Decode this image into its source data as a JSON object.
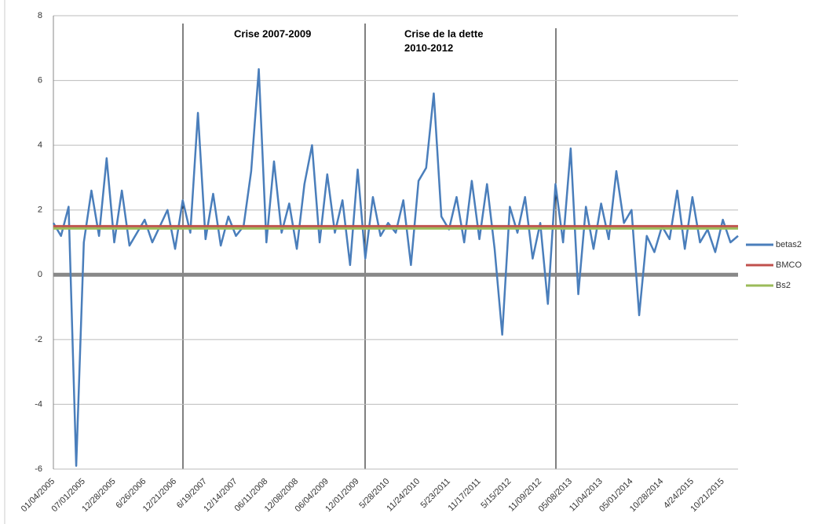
{
  "chart_data": {
    "type": "line",
    "annotations": [
      "Crise 2007-2009",
      "Crise de la dette",
      "2010-2012"
    ],
    "categories": [
      "01/04/2005",
      null,
      null,
      null,
      "07/01/2005",
      null,
      null,
      null,
      "12/28/2005",
      null,
      null,
      null,
      "6/26/2006",
      null,
      null,
      null,
      "12/21/2006",
      null,
      null,
      null,
      "6/19/2007",
      null,
      null,
      null,
      "12/14/2007",
      null,
      null,
      null,
      "06/11/2008",
      null,
      null,
      null,
      "12/08/2008",
      null,
      null,
      null,
      "06/04/2009",
      null,
      null,
      null,
      "12/01/2009",
      null,
      null,
      null,
      "5/28/2010",
      null,
      null,
      null,
      "11/24/2010",
      null,
      null,
      null,
      "5/23/2011",
      null,
      null,
      null,
      "11/17/2011",
      null,
      null,
      null,
      "5/15/2012",
      null,
      null,
      null,
      "11/09/2012",
      null,
      null,
      null,
      "05/08/2013",
      null,
      null,
      null,
      "11/04/2013",
      null,
      null,
      null,
      "05/01/2014",
      null,
      null,
      null,
      "10/28/2014",
      null,
      null,
      null,
      "4/24/2015",
      null,
      null,
      null,
      "10/21/2015",
      null,
      null
    ],
    "series": [
      {
        "name": "betas2",
        "color": "#4a7ebb",
        "values": [
          1.6,
          1.2,
          2.1,
          -5.9,
          1.0,
          2.6,
          1.2,
          3.6,
          1.0,
          2.6,
          0.9,
          1.3,
          1.7,
          1.0,
          1.5,
          2.0,
          0.8,
          2.3,
          1.3,
          5.0,
          1.1,
          2.5,
          0.9,
          1.8,
          1.2,
          1.5,
          3.2,
          6.35,
          1.0,
          3.5,
          1.3,
          2.2,
          0.8,
          2.8,
          4.0,
          1.0,
          3.1,
          1.3,
          2.3,
          0.3,
          3.25,
          0.5,
          2.4,
          1.2,
          1.6,
          1.3,
          2.3,
          0.3,
          2.9,
          3.3,
          5.6,
          1.8,
          1.4,
          2.4,
          1.0,
          2.9,
          1.1,
          2.8,
          0.8,
          -1.85,
          2.1,
          1.3,
          2.4,
          0.5,
          1.6,
          -0.9,
          2.8,
          1.0,
          3.9,
          -0.6,
          2.1,
          0.8,
          2.2,
          1.1,
          3.2,
          1.6,
          2.0,
          -1.25,
          1.2,
          0.7,
          1.5,
          1.1,
          2.6,
          0.8,
          2.4,
          1.0,
          1.4,
          0.7,
          1.7,
          1.0,
          1.2
        ]
      }
    ],
    "reference_lines": [
      {
        "name": "BMCO",
        "color": "#c0504d",
        "value": 1.5
      },
      {
        "name": "Bs2",
        "color": "#9bbb59",
        "value": 1.43
      }
    ],
    "ylim": [
      -6,
      8
    ],
    "yticks": [
      -6,
      -4,
      -2,
      0,
      2,
      4,
      6,
      8
    ],
    "grid": true,
    "legend": "right"
  }
}
